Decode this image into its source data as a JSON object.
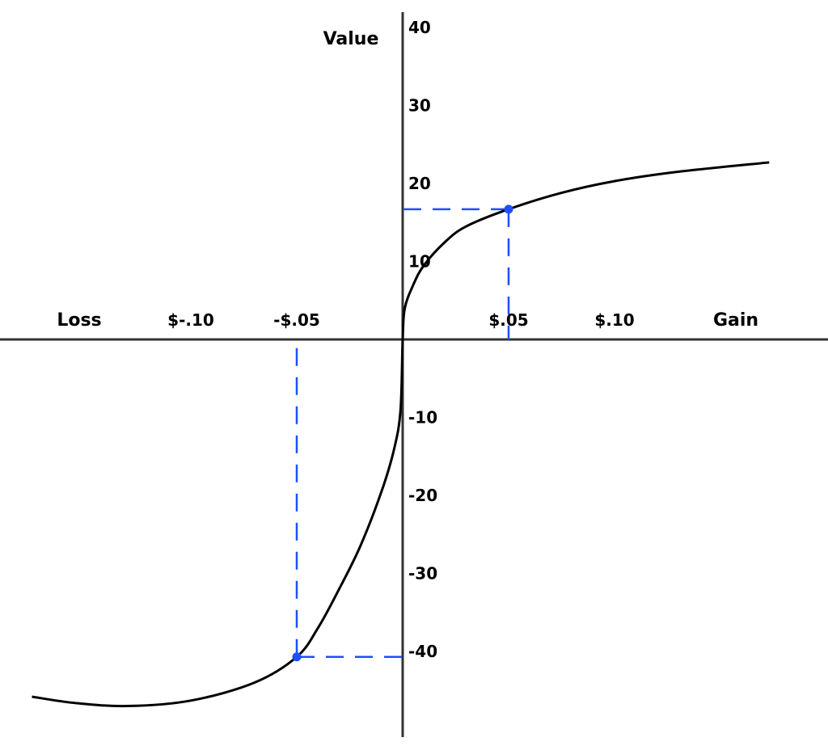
{
  "chart_data": {
    "type": "line",
    "title": "",
    "xlabel_left": "Loss",
    "xlabel_right": "Gain",
    "ylabel": "Value",
    "xlim": [
      -0.19,
      0.2
    ],
    "ylim": [
      -51,
      42
    ],
    "grid": false,
    "x_ticks": [
      {
        "value": -0.1,
        "label": "$-.10"
      },
      {
        "value": -0.05,
        "label": "-$.05"
      },
      {
        "value": 0.05,
        "label": "$.05"
      },
      {
        "value": 0.1,
        "label": "$.10"
      }
    ],
    "y_ticks": [
      {
        "value": 40,
        "label": "40"
      },
      {
        "value": 30,
        "label": "30"
      },
      {
        "value": 20,
        "label": "20"
      },
      {
        "value": 10,
        "label": "10"
      },
      {
        "value": -10,
        "label": "-10"
      },
      {
        "value": -20,
        "label": "-20"
      },
      {
        "value": -30,
        "label": "-30"
      },
      {
        "value": -40,
        "label": "-40"
      }
    ],
    "series": [
      {
        "color": "#000000",
        "points": [
          [
            -0.175,
            -45.8
          ],
          [
            -0.155,
            -46.6
          ],
          [
            -0.13,
            -47
          ],
          [
            -0.1,
            -46.3
          ],
          [
            -0.07,
            -44
          ],
          [
            -0.05,
            -40.7
          ],
          [
            -0.04,
            -37
          ],
          [
            -0.03,
            -32
          ],
          [
            -0.02,
            -26.5
          ],
          [
            -0.01,
            -19.5
          ],
          [
            -0.004,
            -14
          ],
          [
            -0.001,
            -9
          ],
          [
            0,
            0
          ],
          [
            0.001,
            4
          ],
          [
            0.005,
            7
          ],
          [
            0.01,
            9.5
          ],
          [
            0.02,
            12.5
          ],
          [
            0.03,
            14.5
          ],
          [
            0.05,
            16.7
          ],
          [
            0.075,
            18.8
          ],
          [
            0.1,
            20.3
          ],
          [
            0.13,
            21.5
          ],
          [
            0.173,
            22.7
          ]
        ]
      }
    ],
    "highlight_points": [
      {
        "x": 0.05,
        "y": 16.7,
        "color": "#1f4fff"
      },
      {
        "x": -0.05,
        "y": -40.7,
        "color": "#1f4fff"
      }
    ]
  }
}
